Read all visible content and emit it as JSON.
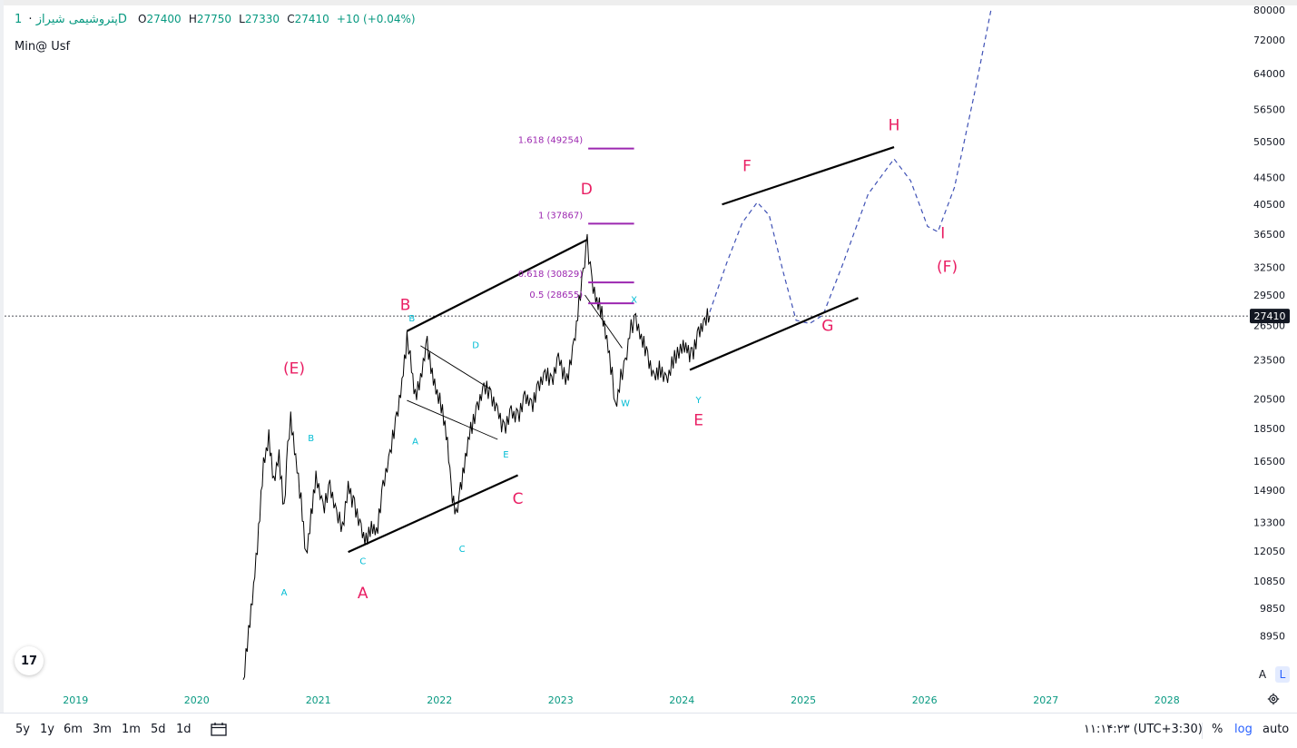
{
  "legend": {
    "symbol": "پتروشیمی شیراز",
    "dot": "·",
    "interval": "1D",
    "open_label": "O",
    "open": "27400",
    "high_label": "H",
    "high": "27750",
    "low_label": "L",
    "low": "27330",
    "close_label": "C",
    "close": "27410",
    "change": "+10 (+0.04%)"
  },
  "study_label": "Min@ Usf",
  "logo_text": "17",
  "bottom": {
    "ranges": [
      "5y",
      "1y",
      "6m",
      "3m",
      "1m",
      "5d",
      "1d"
    ],
    "time": "۱۱:۱۴:۲۳ (UTC+3:30)",
    "percent": "%",
    "log": "log",
    "auto": "auto"
  },
  "scale_buttons": {
    "a": "A",
    "l": "L"
  },
  "colors": {
    "up": "#089981",
    "wave": "#e91e63",
    "sub_wave": "#00bcd4",
    "fib": "#9c27b0",
    "projection": "#3f51b5",
    "accent": "#2962ff"
  },
  "chart_data": {
    "type": "line",
    "y_scale": "log",
    "ylim": [
      7500,
      80000
    ],
    "xlim": [
      "2018-06-01",
      "2028-09-01"
    ],
    "grid": false,
    "x_ticks": [
      "2019",
      "2020",
      "2021",
      "2022",
      "2023",
      "2024",
      "2025",
      "2026",
      "2027",
      "2028"
    ],
    "x_tick_dates": [
      "2019-01-01",
      "2020-01-01",
      "2021-01-01",
      "2022-01-01",
      "2023-01-01",
      "2024-01-01",
      "2025-01-01",
      "2026-01-01",
      "2027-01-01",
      "2028-01-01"
    ],
    "y_ticks": [
      80000,
      72000,
      64000,
      56500,
      50500,
      44500,
      40500,
      36500,
      32500,
      29500,
      26500,
      23500,
      20500,
      18500,
      16500,
      14900,
      13300,
      12050,
      10850,
      9850,
      8950
    ],
    "last_price": 27410,
    "last_price_label": "27410",
    "price_path": [
      [
        "2020-05-20",
        7600
      ],
      [
        "2020-06-05",
        9000
      ],
      [
        "2020-06-20",
        10500
      ],
      [
        "2020-07-05",
        13000
      ],
      [
        "2020-07-20",
        16500
      ],
      [
        "2020-08-05",
        17800
      ],
      [
        "2020-08-20",
        15200
      ],
      [
        "2020-09-05",
        16800
      ],
      [
        "2020-09-20",
        14000
      ],
      [
        "2020-10-01",
        17500
      ],
      [
        "2020-10-10",
        19000
      ],
      [
        "2020-10-25",
        16500
      ],
      [
        "2020-11-10",
        14500
      ],
      [
        "2020-11-25",
        11900
      ],
      [
        "2020-12-10",
        13500
      ],
      [
        "2020-12-25",
        15500
      ],
      [
        "2021-01-15",
        14000
      ],
      [
        "2021-02-05",
        15200
      ],
      [
        "2021-02-25",
        13800
      ],
      [
        "2021-03-15",
        12900
      ],
      [
        "2021-04-01",
        15000
      ],
      [
        "2021-04-20",
        14200
      ],
      [
        "2021-05-10",
        13100
      ],
      [
        "2021-05-25",
        12400
      ],
      [
        "2021-06-10",
        13000
      ],
      [
        "2021-06-25",
        12800
      ],
      [
        "2021-07-15",
        15200
      ],
      [
        "2021-08-05",
        17000
      ],
      [
        "2021-08-25",
        19000
      ],
      [
        "2021-09-10",
        21500
      ],
      [
        "2021-09-25",
        25500
      ],
      [
        "2021-10-05",
        24000
      ],
      [
        "2021-10-20",
        20500
      ],
      [
        "2021-11-05",
        21800
      ],
      [
        "2021-11-25",
        25000
      ],
      [
        "2021-12-10",
        22500
      ],
      [
        "2021-12-25",
        21000
      ],
      [
        "2022-01-10",
        19500
      ],
      [
        "2022-01-25",
        17500
      ],
      [
        "2022-02-05",
        15000
      ],
      [
        "2022-02-20",
        13800
      ],
      [
        "2022-03-05",
        14800
      ],
      [
        "2022-03-20",
        16500
      ],
      [
        "2022-04-05",
        18500
      ],
      [
        "2022-04-25",
        20000
      ],
      [
        "2022-05-15",
        21500
      ],
      [
        "2022-06-05",
        20500
      ],
      [
        "2022-06-25",
        19500
      ],
      [
        "2022-07-15",
        18500
      ],
      [
        "2022-08-05",
        19800
      ],
      [
        "2022-08-25",
        19000
      ],
      [
        "2022-09-15",
        20500
      ],
      [
        "2022-10-05",
        20000
      ],
      [
        "2022-10-25",
        21500
      ],
      [
        "2022-11-15",
        22500
      ],
      [
        "2022-12-05",
        21500
      ],
      [
        "2022-12-25",
        23500
      ],
      [
        "2023-01-20",
        22000
      ],
      [
        "2023-02-10",
        25000
      ],
      [
        "2023-02-25",
        28500
      ],
      [
        "2023-03-10",
        31500
      ],
      [
        "2023-03-22",
        35700
      ],
      [
        "2023-04-05",
        31000
      ],
      [
        "2023-04-20",
        29000
      ],
      [
        "2023-05-05",
        27500
      ],
      [
        "2023-05-20",
        25000
      ],
      [
        "2023-06-05",
        22500
      ],
      [
        "2023-06-15",
        20000
      ],
      [
        "2023-07-01",
        22000
      ],
      [
        "2023-07-15",
        23000
      ],
      [
        "2023-08-01",
        26500
      ],
      [
        "2023-08-15",
        27200
      ],
      [
        "2023-09-01",
        25500
      ],
      [
        "2023-09-20",
        23500
      ],
      [
        "2023-10-10",
        21800
      ],
      [
        "2023-10-25",
        23000
      ],
      [
        "2023-11-15",
        22000
      ],
      [
        "2023-12-10",
        23500
      ],
      [
        "2024-01-05",
        24500
      ],
      [
        "2024-02-01",
        24000
      ],
      [
        "2024-02-20",
        26000
      ],
      [
        "2024-03-10",
        27000
      ],
      [
        "2024-03-25",
        27410
      ]
    ],
    "projection_path": [
      [
        "2024-03-25",
        27800
      ],
      [
        "2024-05-15",
        33000
      ],
      [
        "2024-07-01",
        38000
      ],
      [
        "2024-08-15",
        40800
      ],
      [
        "2024-09-20",
        39000
      ],
      [
        "2024-11-01",
        32000
      ],
      [
        "2024-12-10",
        27000
      ],
      [
        "2025-01-20",
        26700
      ],
      [
        "2025-03-01",
        27500
      ],
      [
        "2025-05-01",
        33000
      ],
      [
        "2025-07-15",
        42000
      ],
      [
        "2025-10-01",
        47500
      ],
      [
        "2025-11-20",
        44000
      ],
      [
        "2026-01-10",
        37500
      ],
      [
        "2026-02-10",
        36800
      ],
      [
        "2026-04-01",
        43000
      ],
      [
        "2026-06-01",
        60000
      ],
      [
        "2026-07-20",
        80000
      ]
    ],
    "trend_lines": [
      {
        "from": [
          "2021-04-01",
          12000
        ],
        "to": [
          "2022-08-25",
          15700
        ]
      },
      {
        "from": [
          "2021-09-25",
          26000
        ],
        "to": [
          "2023-03-22",
          35800
        ]
      },
      {
        "from": [
          "2024-01-25",
          22700
        ],
        "to": [
          "2025-06-15",
          29200
        ]
      },
      {
        "from": [
          "2024-05-01",
          40500
        ],
        "to": [
          "2025-10-01",
          49500
        ]
      }
    ],
    "thin_lines": [
      {
        "from": [
          "2021-11-05",
          24700
        ],
        "to": [
          "2022-06-05",
          21200
        ]
      },
      {
        "from": [
          "2021-09-25",
          20400
        ],
        "to": [
          "2022-06-25",
          17800
        ]
      },
      {
        "from": [
          "2023-03-15",
          29500
        ],
        "to": [
          "2023-07-05",
          24500
        ]
      }
    ],
    "fib_levels": [
      {
        "label": "1.618 (49254)",
        "value": 49254
      },
      {
        "label": "1 (37867)",
        "value": 37867
      },
      {
        "label": "0.618 (30829)",
        "value": 30829
      },
      {
        "label": "0.5 (28655)",
        "value": 28655
      }
    ],
    "fib_x_range": [
      "2023-03-25",
      "2023-08-10"
    ],
    "wave_labels": [
      {
        "text": "(E)",
        "x": "2020-10-20",
        "y": 22400,
        "role": "main"
      },
      {
        "text": "A",
        "x": "2021-05-15",
        "y": 10200,
        "role": "main"
      },
      {
        "text": "B",
        "x": "2021-09-20",
        "y": 28000,
        "role": "main"
      },
      {
        "text": "C",
        "x": "2022-08-25",
        "y": 14200,
        "role": "main"
      },
      {
        "text": "D",
        "x": "2023-03-20",
        "y": 42000,
        "role": "main"
      },
      {
        "text": "E",
        "x": "2024-02-20",
        "y": 18700,
        "role": "main"
      },
      {
        "text": "F",
        "x": "2024-07-15",
        "y": 45500,
        "role": "main"
      },
      {
        "text": "G",
        "x": "2025-03-15",
        "y": 26000,
        "role": "main"
      },
      {
        "text": "H",
        "x": "2025-10-01",
        "y": 52500,
        "role": "main"
      },
      {
        "text": "I",
        "x": "2026-02-25",
        "y": 36000,
        "role": "main"
      },
      {
        "text": "(F)",
        "x": "2026-03-10",
        "y": 32000,
        "role": "main"
      },
      {
        "text": "A",
        "x": "2020-09-20",
        "y": 10300,
        "role": "sub"
      },
      {
        "text": "B",
        "x": "2020-12-10",
        "y": 17700,
        "role": "sub"
      },
      {
        "text": "C",
        "x": "2021-05-15",
        "y": 11500,
        "role": "sub"
      },
      {
        "text": "B",
        "x": "2021-10-10",
        "y": 26900,
        "role": "sub"
      },
      {
        "text": "A",
        "x": "2021-10-20",
        "y": 17500,
        "role": "sub"
      },
      {
        "text": "C",
        "x": "2022-03-10",
        "y": 12000,
        "role": "sub"
      },
      {
        "text": "D",
        "x": "2022-04-20",
        "y": 24500,
        "role": "sub"
      },
      {
        "text": "E",
        "x": "2022-07-20",
        "y": 16700,
        "role": "sub"
      },
      {
        "text": "W",
        "x": "2023-07-15",
        "y": 20000,
        "role": "sub"
      },
      {
        "text": "X",
        "x": "2023-08-10",
        "y": 28700,
        "role": "sub"
      },
      {
        "text": "Y",
        "x": "2024-02-20",
        "y": 20200,
        "role": "sub"
      }
    ]
  }
}
